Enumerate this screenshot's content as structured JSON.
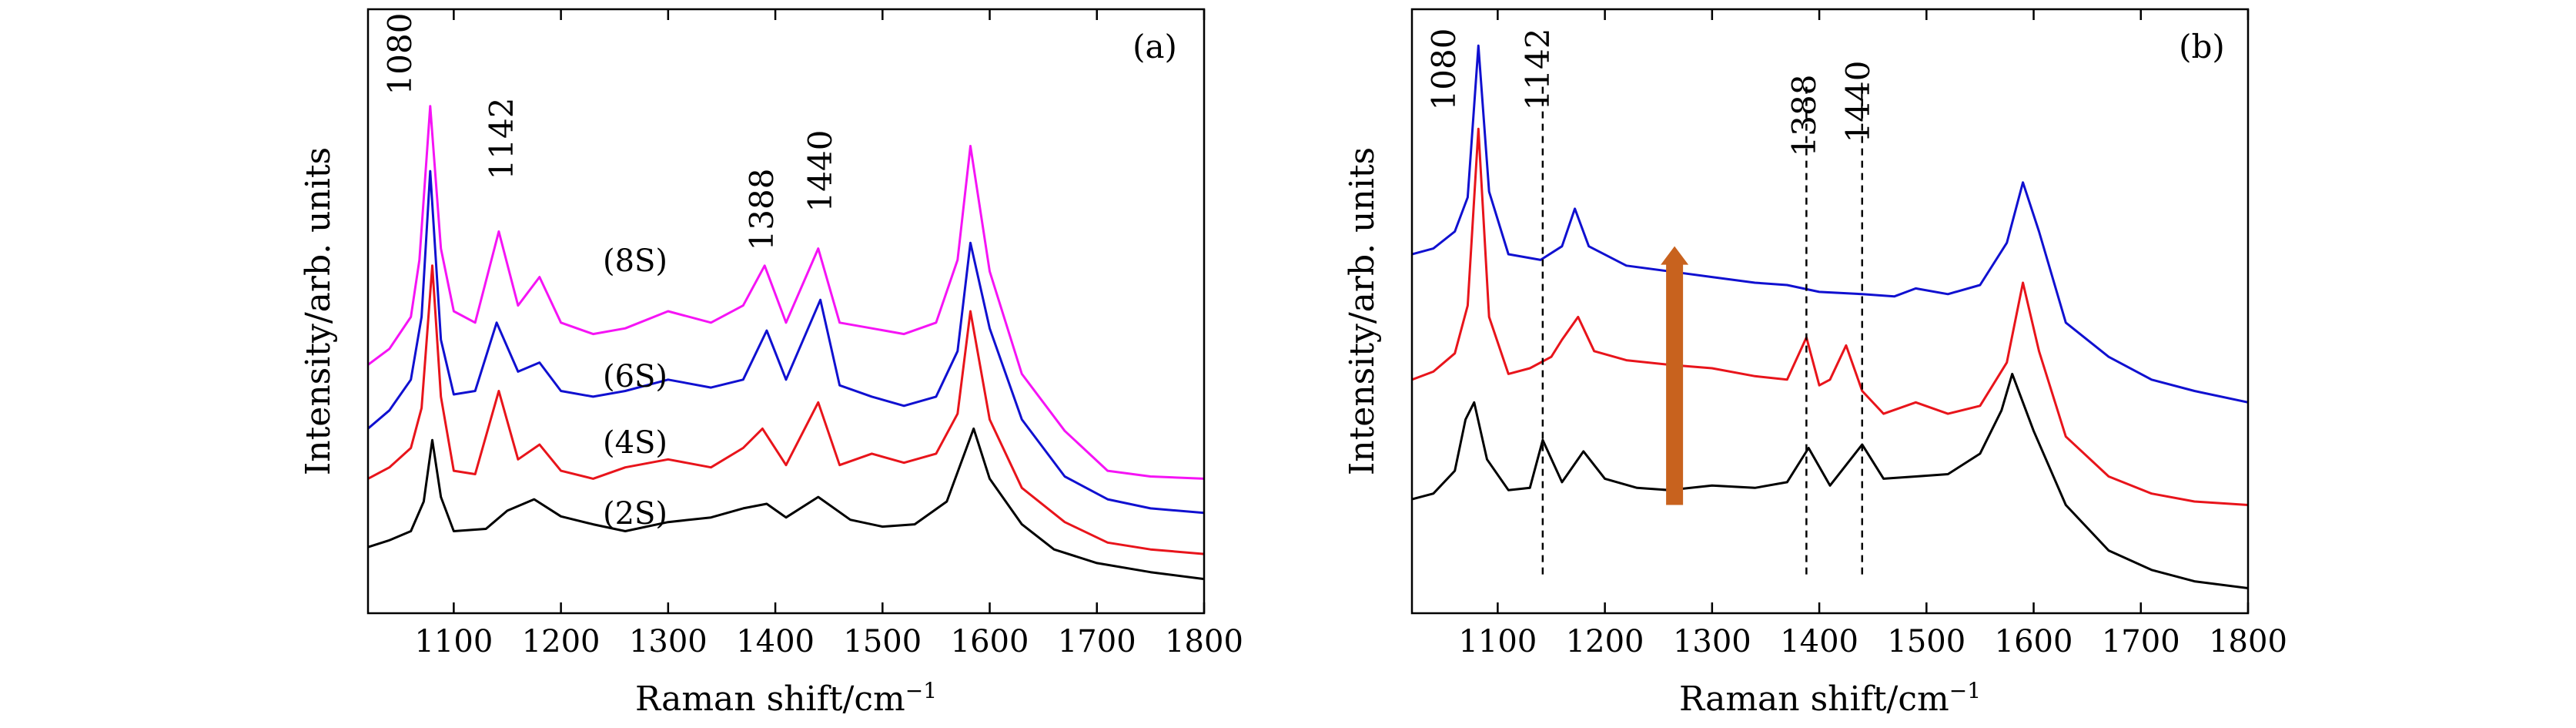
{
  "chart_data": [
    {
      "panel": "(a)",
      "type": "line",
      "xlabel": "Raman shift/cm",
      "xlabel_superscript": "−1",
      "ylabel": "Intensity/arb. units",
      "xlim": [
        1020,
        1800
      ],
      "xticks": [
        1100,
        1200,
        1300,
        1400,
        1500,
        1600,
        1700,
        1800
      ],
      "grid": false,
      "peak_annotations": [
        "1080",
        "1142",
        "1388",
        "1440"
      ],
      "series": [
        {
          "name": "(2S)",
          "color": "#000000",
          "points": [
            [
              1020,
              0.58
            ],
            [
              1040,
              0.64
            ],
            [
              1060,
              0.72
            ],
            [
              1072,
              0.98
            ],
            [
              1080,
              1.52
            ],
            [
              1088,
              1.02
            ],
            [
              1100,
              0.72
            ],
            [
              1130,
              0.74
            ],
            [
              1150,
              0.9
            ],
            [
              1175,
              1.0
            ],
            [
              1200,
              0.85
            ],
            [
              1230,
              0.78
            ],
            [
              1260,
              0.72
            ],
            [
              1300,
              0.8
            ],
            [
              1340,
              0.84
            ],
            [
              1370,
              0.92
            ],
            [
              1392,
              0.96
            ],
            [
              1410,
              0.84
            ],
            [
              1440,
              1.02
            ],
            [
              1470,
              0.82
            ],
            [
              1500,
              0.76
            ],
            [
              1530,
              0.78
            ],
            [
              1560,
              0.98
            ],
            [
              1585,
              1.62
            ],
            [
              1600,
              1.18
            ],
            [
              1630,
              0.78
            ],
            [
              1660,
              0.56
            ],
            [
              1700,
              0.44
            ],
            [
              1750,
              0.36
            ],
            [
              1800,
              0.3
            ]
          ]
        },
        {
          "name": "(4S)",
          "color": "#e8141b",
          "points": [
            [
              1020,
              1.18
            ],
            [
              1040,
              1.28
            ],
            [
              1060,
              1.45
            ],
            [
              1070,
              1.8
            ],
            [
              1080,
              3.05
            ],
            [
              1088,
              1.9
            ],
            [
              1100,
              1.25
            ],
            [
              1120,
              1.22
            ],
            [
              1142,
              1.95
            ],
            [
              1160,
              1.35
            ],
            [
              1180,
              1.48
            ],
            [
              1200,
              1.25
            ],
            [
              1230,
              1.18
            ],
            [
              1260,
              1.28
            ],
            [
              1300,
              1.35
            ],
            [
              1340,
              1.28
            ],
            [
              1370,
              1.45
            ],
            [
              1388,
              1.62
            ],
            [
              1410,
              1.3
            ],
            [
              1440,
              1.85
            ],
            [
              1460,
              1.3
            ],
            [
              1490,
              1.4
            ],
            [
              1520,
              1.32
            ],
            [
              1550,
              1.4
            ],
            [
              1570,
              1.75
            ],
            [
              1582,
              2.65
            ],
            [
              1600,
              1.7
            ],
            [
              1630,
              1.1
            ],
            [
              1670,
              0.8
            ],
            [
              1710,
              0.62
            ],
            [
              1750,
              0.56
            ],
            [
              1800,
              0.52
            ]
          ]
        },
        {
          "name": "(6S)",
          "color": "#1010d0",
          "points": [
            [
              1020,
              1.62
            ],
            [
              1040,
              1.78
            ],
            [
              1060,
              2.05
            ],
            [
              1070,
              2.6
            ],
            [
              1078,
              3.88
            ],
            [
              1088,
              2.4
            ],
            [
              1100,
              1.92
            ],
            [
              1120,
              1.95
            ],
            [
              1140,
              2.55
            ],
            [
              1160,
              2.12
            ],
            [
              1180,
              2.2
            ],
            [
              1200,
              1.95
            ],
            [
              1230,
              1.9
            ],
            [
              1260,
              1.95
            ],
            [
              1300,
              2.05
            ],
            [
              1340,
              1.98
            ],
            [
              1370,
              2.05
            ],
            [
              1392,
              2.48
            ],
            [
              1410,
              2.05
            ],
            [
              1442,
              2.75
            ],
            [
              1460,
              2.0
            ],
            [
              1490,
              1.9
            ],
            [
              1520,
              1.82
            ],
            [
              1550,
              1.9
            ],
            [
              1570,
              2.3
            ],
            [
              1582,
              3.25
            ],
            [
              1600,
              2.5
            ],
            [
              1630,
              1.7
            ],
            [
              1670,
              1.2
            ],
            [
              1710,
              1.0
            ],
            [
              1750,
              0.92
            ],
            [
              1800,
              0.88
            ]
          ]
        },
        {
          "name": "(8S)",
          "color": "#f514f5",
          "points": [
            [
              1020,
              2.18
            ],
            [
              1040,
              2.32
            ],
            [
              1060,
              2.6
            ],
            [
              1068,
              3.1
            ],
            [
              1078,
              4.45
            ],
            [
              1088,
              3.2
            ],
            [
              1100,
              2.65
            ],
            [
              1120,
              2.55
            ],
            [
              1142,
              3.35
            ],
            [
              1160,
              2.7
            ],
            [
              1180,
              2.95
            ],
            [
              1200,
              2.55
            ],
            [
              1230,
              2.45
            ],
            [
              1260,
              2.5
            ],
            [
              1300,
              2.65
            ],
            [
              1340,
              2.55
            ],
            [
              1370,
              2.7
            ],
            [
              1390,
              3.05
            ],
            [
              1410,
              2.55
            ],
            [
              1440,
              3.2
            ],
            [
              1460,
              2.55
            ],
            [
              1490,
              2.5
            ],
            [
              1520,
              2.45
            ],
            [
              1550,
              2.55
            ],
            [
              1570,
              3.1
            ],
            [
              1582,
              4.1
            ],
            [
              1600,
              3.0
            ],
            [
              1630,
              2.1
            ],
            [
              1670,
              1.6
            ],
            [
              1710,
              1.25
            ],
            [
              1750,
              1.2
            ],
            [
              1800,
              1.18
            ]
          ]
        }
      ]
    },
    {
      "panel": "(b)",
      "type": "line",
      "xlabel": "Raman shift/cm",
      "xlabel_superscript": "−1",
      "ylabel": "Intensity/arb. units",
      "xlim": [
        1020,
        1800
      ],
      "xticks": [
        1100,
        1200,
        1300,
        1400,
        1500,
        1600,
        1700,
        1800
      ],
      "grid": false,
      "peak_annotations": [
        "1080",
        "1142",
        "1388",
        "1440"
      ],
      "dashed_lines_x": [
        1142,
        1388,
        1440
      ],
      "arrow": {
        "direction": "up",
        "x": 1265,
        "y_from": 0.95,
        "y_to": 3.22,
        "color": "#c8621e"
      },
      "series": [
        {
          "color": "#000000",
          "points": [
            [
              1020,
              1.0
            ],
            [
              1040,
              1.05
            ],
            [
              1060,
              1.25
            ],
            [
              1070,
              1.7
            ],
            [
              1078,
              1.85
            ],
            [
              1090,
              1.35
            ],
            [
              1110,
              1.08
            ],
            [
              1130,
              1.1
            ],
            [
              1142,
              1.52
            ],
            [
              1160,
              1.15
            ],
            [
              1180,
              1.42
            ],
            [
              1200,
              1.18
            ],
            [
              1230,
              1.1
            ],
            [
              1260,
              1.08
            ],
            [
              1300,
              1.12
            ],
            [
              1340,
              1.1
            ],
            [
              1370,
              1.15
            ],
            [
              1390,
              1.45
            ],
            [
              1410,
              1.12
            ],
            [
              1440,
              1.48
            ],
            [
              1460,
              1.18
            ],
            [
              1490,
              1.2
            ],
            [
              1520,
              1.22
            ],
            [
              1550,
              1.4
            ],
            [
              1570,
              1.78
            ],
            [
              1580,
              2.1
            ],
            [
              1600,
              1.6
            ],
            [
              1630,
              0.95
            ],
            [
              1670,
              0.55
            ],
            [
              1710,
              0.38
            ],
            [
              1750,
              0.28
            ],
            [
              1800,
              0.22
            ]
          ]
        },
        {
          "color": "#e8141b",
          "points": [
            [
              1020,
              2.05
            ],
            [
              1040,
              2.12
            ],
            [
              1060,
              2.28
            ],
            [
              1072,
              2.7
            ],
            [
              1082,
              4.25
            ],
            [
              1092,
              2.6
            ],
            [
              1110,
              2.1
            ],
            [
              1130,
              2.15
            ],
            [
              1150,
              2.25
            ],
            [
              1160,
              2.4
            ],
            [
              1175,
              2.6
            ],
            [
              1190,
              2.3
            ],
            [
              1220,
              2.22
            ],
            [
              1260,
              2.18
            ],
            [
              1300,
              2.15
            ],
            [
              1340,
              2.08
            ],
            [
              1370,
              2.05
            ],
            [
              1388,
              2.42
            ],
            [
              1400,
              2.0
            ],
            [
              1410,
              2.05
            ],
            [
              1425,
              2.35
            ],
            [
              1440,
              1.95
            ],
            [
              1460,
              1.75
            ],
            [
              1490,
              1.85
            ],
            [
              1520,
              1.75
            ],
            [
              1550,
              1.82
            ],
            [
              1575,
              2.2
            ],
            [
              1590,
              2.9
            ],
            [
              1605,
              2.3
            ],
            [
              1630,
              1.55
            ],
            [
              1670,
              1.2
            ],
            [
              1710,
              1.05
            ],
            [
              1750,
              0.98
            ],
            [
              1800,
              0.95
            ]
          ]
        },
        {
          "color": "#1010d0",
          "points": [
            [
              1020,
              3.15
            ],
            [
              1040,
              3.2
            ],
            [
              1060,
              3.35
            ],
            [
              1072,
              3.65
            ],
            [
              1082,
              4.98
            ],
            [
              1092,
              3.7
            ],
            [
              1110,
              3.15
            ],
            [
              1140,
              3.1
            ],
            [
              1160,
              3.22
            ],
            [
              1172,
              3.55
            ],
            [
              1185,
              3.22
            ],
            [
              1220,
              3.05
            ],
            [
              1260,
              3.0
            ],
            [
              1300,
              2.95
            ],
            [
              1340,
              2.9
            ],
            [
              1370,
              2.88
            ],
            [
              1400,
              2.82
            ],
            [
              1440,
              2.8
            ],
            [
              1470,
              2.78
            ],
            [
              1490,
              2.85
            ],
            [
              1520,
              2.8
            ],
            [
              1550,
              2.88
            ],
            [
              1575,
              3.25
            ],
            [
              1590,
              3.78
            ],
            [
              1605,
              3.35
            ],
            [
              1630,
              2.55
            ],
            [
              1670,
              2.25
            ],
            [
              1710,
              2.05
            ],
            [
              1750,
              1.95
            ],
            [
              1800,
              1.85
            ]
          ]
        }
      ]
    }
  ]
}
